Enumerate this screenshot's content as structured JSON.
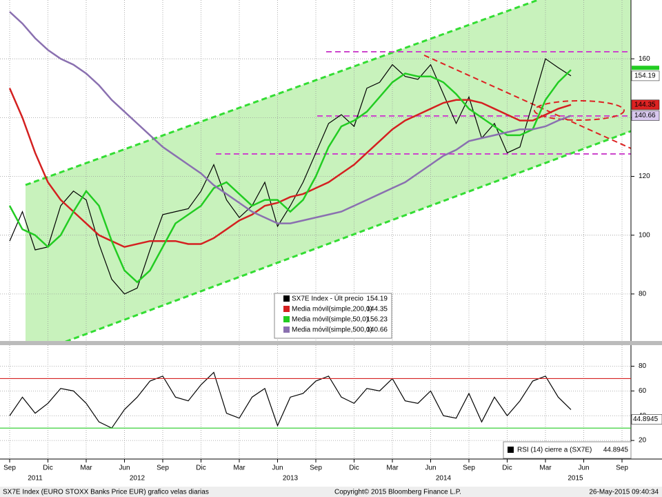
{
  "chart_data": [
    {
      "type": "line",
      "title": "SX7E Index (EURO STOXX Banks Price EUR) grafico velas diarias",
      "source": "Copyright© 2015 Bloomberg Finance L.P.",
      "timestamp": "26-May-2015 09:40:34",
      "x": [
        "2011-09",
        "2011-10",
        "2011-11",
        "2011-12",
        "2012-01",
        "2012-02",
        "2012-03",
        "2012-04",
        "2012-05",
        "2012-06",
        "2012-07",
        "2012-08",
        "2012-09",
        "2012-10",
        "2012-11",
        "2012-12",
        "2013-01",
        "2013-02",
        "2013-03",
        "2013-04",
        "2013-05",
        "2013-06",
        "2013-07",
        "2013-08",
        "2013-09",
        "2013-10",
        "2013-11",
        "2013-12",
        "2014-01",
        "2014-02",
        "2014-03",
        "2014-04",
        "2014-05",
        "2014-06",
        "2014-07",
        "2014-08",
        "2014-09",
        "2014-10",
        "2014-11",
        "2014-12",
        "2015-01",
        "2015-02",
        "2015-03",
        "2015-04",
        "2015-05"
      ],
      "series": [
        {
          "name": "SX7E Index - Últ precio",
          "color": "#000000",
          "values": [
            98,
            108,
            95,
            96,
            110,
            115,
            112,
            97,
            85,
            80,
            82,
            95,
            107,
            108,
            109,
            115,
            124,
            112,
            106,
            110,
            118,
            103,
            110,
            118,
            128,
            138,
            141,
            137,
            150,
            152,
            158,
            154,
            153,
            158,
            148,
            138,
            147,
            133,
            138,
            128,
            130,
            145,
            160,
            157,
            154.19
          ]
        },
        {
          "name": "Media móvil(simple,200,0)",
          "color": "#d42020",
          "values": [
            150,
            140,
            128,
            118,
            112,
            108,
            104,
            100,
            98,
            96,
            97,
            98,
            98,
            98,
            97,
            97,
            99,
            102,
            105,
            107,
            110,
            111,
            113,
            114,
            116,
            118,
            121,
            124,
            128,
            132,
            136,
            139,
            141,
            143,
            145,
            146,
            146,
            145,
            143,
            141,
            139,
            139,
            141,
            143,
            144.35
          ]
        },
        {
          "name": "Media móvil(simple,50,0)",
          "color": "#22cc22",
          "values": [
            110,
            102,
            100,
            96,
            100,
            108,
            115,
            110,
            98,
            88,
            84,
            88,
            96,
            104,
            107,
            110,
            116,
            118,
            114,
            110,
            112,
            112,
            108,
            112,
            120,
            130,
            137,
            139,
            142,
            147,
            152,
            155,
            154,
            154,
            152,
            148,
            143,
            140,
            137,
            134,
            134,
            136,
            146,
            152,
            156.23
          ]
        },
        {
          "name": "Media móvil(simple,500,0)",
          "color": "#8a70b0",
          "values": [
            176,
            172,
            167,
            163,
            160,
            158,
            155,
            151,
            146,
            142,
            138,
            134,
            130,
            127,
            124,
            121,
            117,
            114,
            111,
            108,
            106,
            104,
            104,
            105,
            106,
            107,
            108,
            110,
            112,
            114,
            116,
            118,
            121,
            124,
            127,
            129,
            132,
            133,
            134,
            135,
            136,
            136,
            137,
            139,
            140.66
          ]
        }
      ],
      "ylim": [
        64,
        180
      ],
      "yticks": [
        80,
        100,
        120,
        140,
        160
      ],
      "xticks": [
        {
          "value": "2011-09",
          "label": "Sep"
        },
        {
          "value": "2011-12",
          "label": "Dic"
        },
        {
          "value": "2012-03",
          "label": "Mar"
        },
        {
          "value": "2012-06",
          "label": "Jun"
        },
        {
          "value": "2012-09",
          "label": "Sep"
        },
        {
          "value": "2012-12",
          "label": "Dic"
        },
        {
          "value": "2013-03",
          "label": "Mar"
        },
        {
          "value": "2013-06",
          "label": "Jun"
        },
        {
          "value": "2013-09",
          "label": "Sep"
        },
        {
          "value": "2013-12",
          "label": "Dic"
        },
        {
          "value": "2014-03",
          "label": "Mar"
        },
        {
          "value": "2014-06",
          "label": "Jun"
        },
        {
          "value": "2014-09",
          "label": "Sep"
        },
        {
          "value": "2014-12",
          "label": "Dic"
        },
        {
          "value": "2015-03",
          "label": "Mar"
        },
        {
          "value": "2015-06",
          "label": "Jun"
        },
        {
          "value": "2015-09",
          "label": "Sep"
        }
      ],
      "years": [
        "2011",
        "2012",
        "2013",
        "2014",
        "2015"
      ],
      "grid": true
    },
    {
      "type": "line",
      "series": [
        {
          "name": "RSI (14) cierre a (SX7E)",
          "color": "#000000",
          "values": [
            40,
            55,
            42,
            50,
            62,
            60,
            50,
            35,
            30,
            45,
            55,
            68,
            72,
            55,
            52,
            65,
            75,
            42,
            38,
            55,
            62,
            32,
            55,
            58,
            68,
            72,
            55,
            50,
            62,
            60,
            70,
            52,
            50,
            60,
            40,
            38,
            58,
            35,
            55,
            40,
            52,
            68,
            72,
            55,
            44.8945
          ]
        }
      ],
      "levels": [
        70,
        30
      ],
      "level_colors": [
        "#d42020",
        "#22cc22"
      ],
      "ylim": [
        5,
        97
      ],
      "yticks": [
        20,
        40,
        60,
        80
      ],
      "grid": true
    }
  ]
}
